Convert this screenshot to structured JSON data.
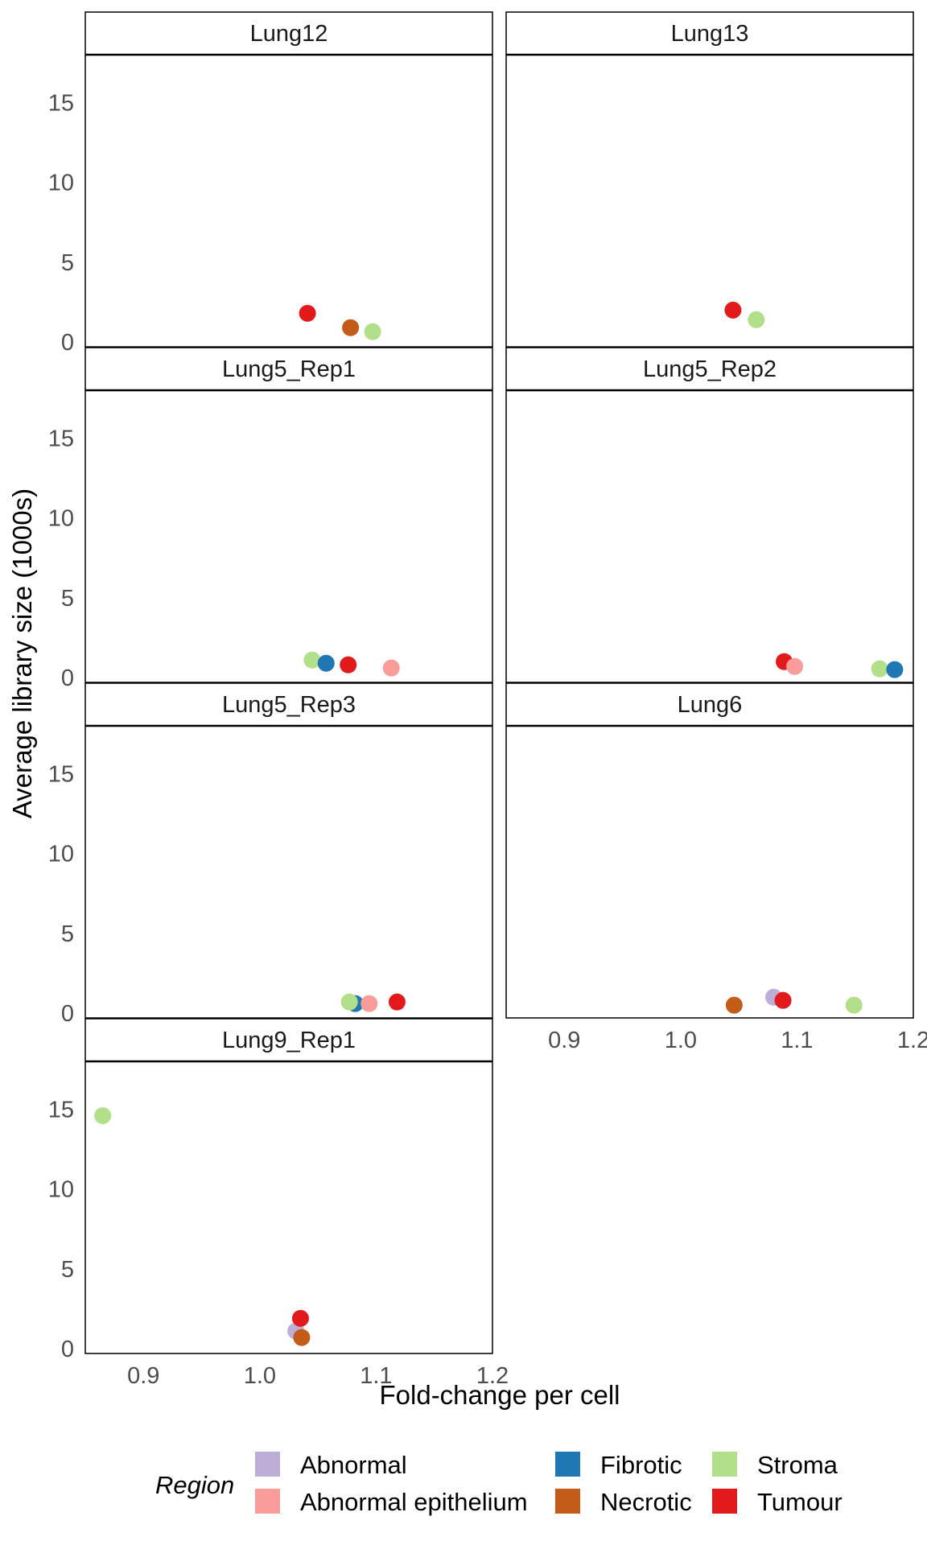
{
  "chart_data": {
    "type": "scatter",
    "facet_by": "sample",
    "xlabel": "Fold-change per cell",
    "ylabel": "Average library size (1000s)",
    "xlim": [
      0.85,
      1.2
    ],
    "ylim": [
      -0.3,
      18.0
    ],
    "x_ticks": [
      0.9,
      1.0,
      1.1,
      1.2
    ],
    "x_tick_labels": [
      "0.9",
      "1.0",
      "1.1",
      "1.2"
    ],
    "y_ticks": [
      0,
      5,
      10,
      15
    ],
    "y_tick_labels": [
      "0",
      "5",
      "10",
      "15"
    ],
    "grid": false,
    "legend": {
      "title": "Region",
      "position": "bottom",
      "entries": [
        {
          "label": "Abnormal",
          "color": "#bcaed6"
        },
        {
          "label": "Abnormal epithelium",
          "color": "#f99c9a"
        },
        {
          "label": "Fibrotic",
          "color": "#1f78b4"
        },
        {
          "label": "Necrotic",
          "color": "#c45c19"
        },
        {
          "label": "Stroma",
          "color": "#b2df8a"
        },
        {
          "label": "Tumour",
          "color": "#e31a1c"
        }
      ]
    },
    "panels": [
      {
        "name": "Lung12",
        "points": [
          {
            "region": "Tumour",
            "x": 1.041,
            "y": 1.8
          },
          {
            "region": "Necrotic",
            "x": 1.078,
            "y": 0.9
          },
          {
            "region": "Stroma",
            "x": 1.097,
            "y": 0.65
          }
        ]
      },
      {
        "name": "Lung13",
        "points": [
          {
            "region": "Tumour",
            "x": 1.045,
            "y": 2.0
          },
          {
            "region": "Stroma",
            "x": 1.065,
            "y": 1.4
          }
        ]
      },
      {
        "name": "Lung5_Rep1",
        "points": [
          {
            "region": "Stroma",
            "x": 1.045,
            "y": 1.1
          },
          {
            "region": "Fibrotic",
            "x": 1.057,
            "y": 0.9
          },
          {
            "region": "Tumour",
            "x": 1.076,
            "y": 0.8
          },
          {
            "region": "Abnormal epithelium",
            "x": 1.113,
            "y": 0.6
          }
        ]
      },
      {
        "name": "Lung5_Rep2",
        "points": [
          {
            "region": "Tumour",
            "x": 1.089,
            "y": 1.0
          },
          {
            "region": "Abnormal epithelium",
            "x": 1.098,
            "y": 0.7
          },
          {
            "region": "Stroma",
            "x": 1.171,
            "y": 0.55
          },
          {
            "region": "Fibrotic",
            "x": 1.184,
            "y": 0.5
          }
        ]
      },
      {
        "name": "Lung5_Rep3",
        "points": [
          {
            "region": "Fibrotic",
            "x": 1.082,
            "y": 0.6
          },
          {
            "region": "Stroma",
            "x": 1.077,
            "y": 0.7
          },
          {
            "region": "Abnormal epithelium",
            "x": 1.094,
            "y": 0.6
          },
          {
            "region": "Tumour",
            "x": 1.118,
            "y": 0.7
          }
        ]
      },
      {
        "name": "Lung6",
        "points": [
          {
            "region": "Necrotic",
            "x": 1.046,
            "y": 0.5
          },
          {
            "region": "Abnormal",
            "x": 1.08,
            "y": 1.0
          },
          {
            "region": "Tumour",
            "x": 1.088,
            "y": 0.8
          },
          {
            "region": "Stroma",
            "x": 1.149,
            "y": 0.5
          }
        ]
      },
      {
        "name": "Lung9_Rep1",
        "points": [
          {
            "region": "Stroma",
            "x": 0.865,
            "y": 14.6
          },
          {
            "region": "Abnormal",
            "x": 1.031,
            "y": 1.1
          },
          {
            "region": "Tumour",
            "x": 1.035,
            "y": 1.9
          },
          {
            "region": "Necrotic",
            "x": 1.036,
            "y": 0.7
          }
        ]
      }
    ]
  }
}
